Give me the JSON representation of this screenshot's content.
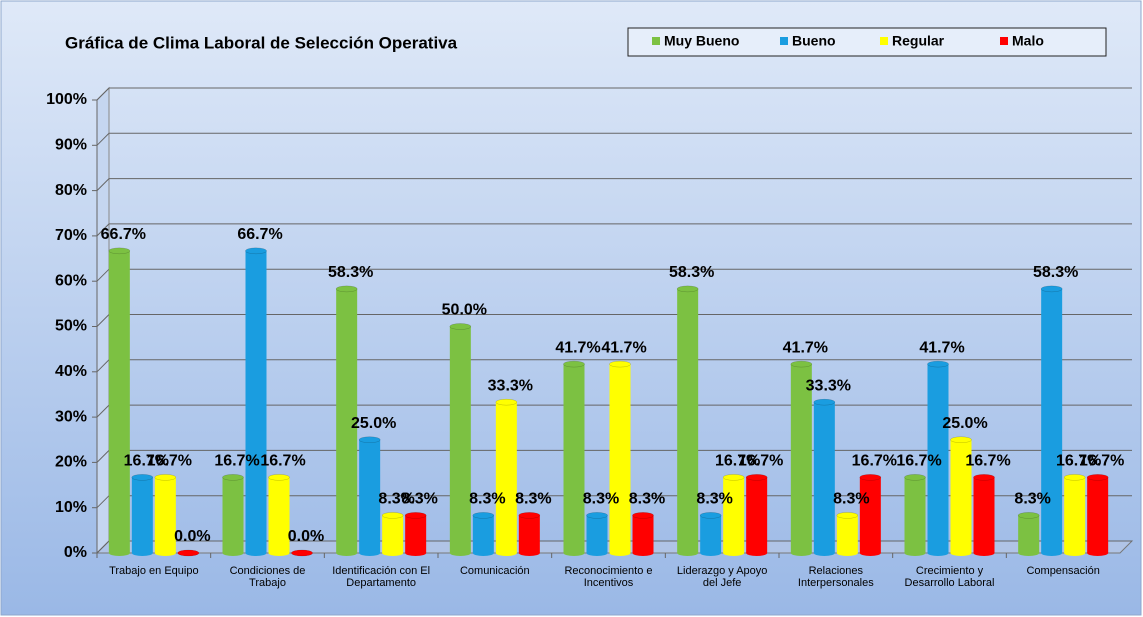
{
  "chart_data": {
    "type": "bar",
    "title": "Gráfica de Clima Laboral de Selección Operativa",
    "categories": [
      "Trabajo en Equipo",
      "Condiciones de Trabajo",
      "Identificación con El Departamento",
      "Comunicación",
      "Reconocimiento e Incentivos",
      "Liderazgo y Apoyo del Jefe",
      "Relaciones Interpersonales",
      "Crecimiento y Desarrollo Laboral",
      "Compensación"
    ],
    "series": [
      {
        "name": "Muy Bueno",
        "color": "#7cc142",
        "values": [
          66.7,
          16.7,
          58.3,
          50.0,
          41.7,
          58.3,
          41.7,
          16.7,
          8.3
        ],
        "value_labels": [
          "66.7%",
          "16.7%",
          "58.3%",
          "50.0%",
          "41.7%",
          "58.3%",
          "41.7%",
          "16.7%",
          "8.3%"
        ]
      },
      {
        "name": "Bueno",
        "color": "#1a9de0",
        "values": [
          16.7,
          66.7,
          25.0,
          8.3,
          8.3,
          8.3,
          33.3,
          41.7,
          58.3
        ],
        "value_labels": [
          "16.7%",
          "66.7%",
          "25.0%",
          "8.3%",
          "8.3%",
          "8.3%",
          "33.3%",
          "41.7%",
          "58.3%"
        ]
      },
      {
        "name": "Regular",
        "color": "#ffff00",
        "values": [
          16.7,
          16.7,
          8.3,
          33.3,
          41.7,
          16.7,
          8.3,
          25.0,
          16.7
        ],
        "value_labels": [
          "16.7%",
          "16.7%",
          "8.3%",
          "33.3%",
          "41.7%",
          "16.7%",
          "8.3%",
          "25.0%",
          "16.7%"
        ]
      },
      {
        "name": "Malo",
        "color": "#ff0000",
        "values": [
          0.0,
          0.0,
          8.3,
          8.3,
          8.3,
          16.7,
          16.7,
          16.7,
          16.7
        ],
        "value_labels": [
          "0.0%",
          "0.0%",
          "8.3%",
          "8.3%",
          "8.3%",
          "16.7%",
          "16.7%",
          "16.7%",
          "16.7%"
        ]
      }
    ],
    "ylim": [
      0,
      100
    ],
    "yticks": [
      {
        "value": 0,
        "label": "0%"
      },
      {
        "value": 10,
        "label": "10%"
      },
      {
        "value": 20,
        "label": "20%"
      },
      {
        "value": 30,
        "label": "30%"
      },
      {
        "value": 40,
        "label": "40%"
      },
      {
        "value": 50,
        "label": "50%"
      },
      {
        "value": 60,
        "label": "60%"
      },
      {
        "value": 70,
        "label": "70%"
      },
      {
        "value": 80,
        "label": "80%"
      },
      {
        "value": 90,
        "label": "90%"
      },
      {
        "value": 100,
        "label": "100%"
      }
    ],
    "grid": true,
    "legend": "top-right"
  }
}
